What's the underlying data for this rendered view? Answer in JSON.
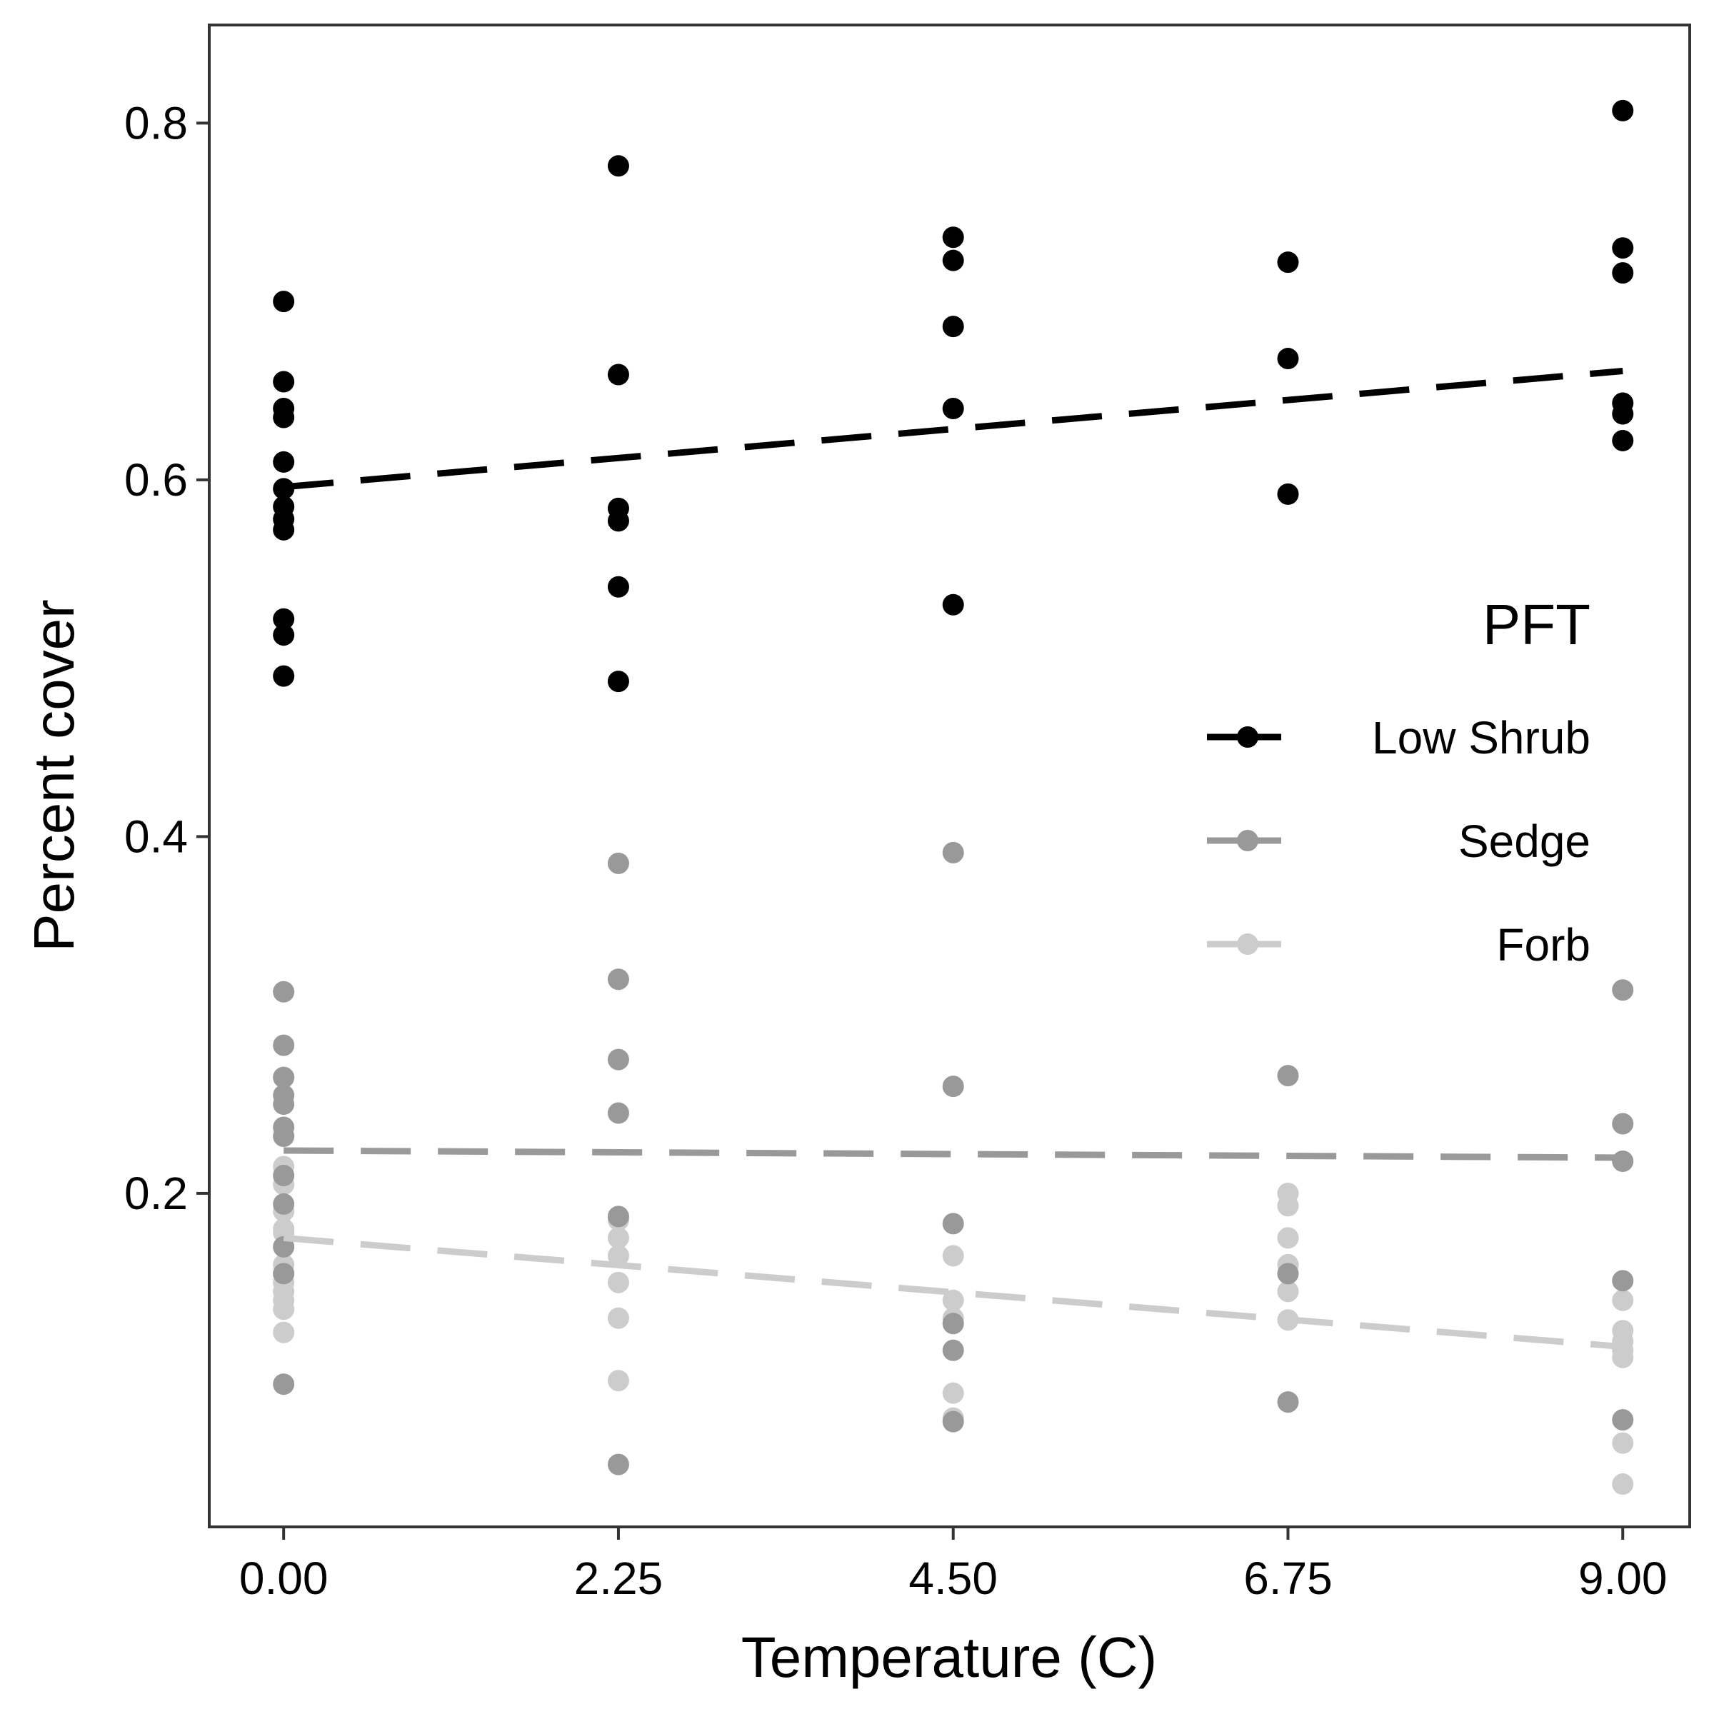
{
  "chart_data": {
    "type": "scatter",
    "title": "",
    "xlabel": "Temperature (C)",
    "ylabel": "Percent cover",
    "xlim": [
      -0.5,
      9.45
    ],
    "ylim": [
      0.013,
      0.855
    ],
    "x_ticks": [
      0,
      2.25,
      4.5,
      6.75,
      9
    ],
    "x_tick_labels": [
      "0.00",
      "2.25",
      "4.50",
      "6.75",
      "9.00"
    ],
    "y_ticks": [
      0.2,
      0.4,
      0.6,
      0.8
    ],
    "y_tick_labels": [
      "0.2",
      "0.4",
      "0.6",
      "0.8"
    ],
    "grid": false,
    "legend": {
      "title": "PFT",
      "position": "right-inside",
      "entries": [
        "Low Shrub",
        "Sedge",
        "Forb"
      ]
    },
    "series": [
      {
        "name": "Low Shrub",
        "color": "#000000",
        "points": [
          [
            0,
            0.7
          ],
          [
            0,
            0.655
          ],
          [
            0,
            0.64
          ],
          [
            0,
            0.635
          ],
          [
            0,
            0.61
          ],
          [
            0,
            0.595
          ],
          [
            0,
            0.585
          ],
          [
            0,
            0.578
          ],
          [
            0,
            0.572
          ],
          [
            0,
            0.522
          ],
          [
            0,
            0.513
          ],
          [
            0,
            0.49
          ],
          [
            2.25,
            0.776
          ],
          [
            2.25,
            0.659
          ],
          [
            2.25,
            0.584
          ],
          [
            2.25,
            0.577
          ],
          [
            2.25,
            0.54
          ],
          [
            2.25,
            0.487
          ],
          [
            4.5,
            0.736
          ],
          [
            4.5,
            0.723
          ],
          [
            4.5,
            0.686
          ],
          [
            4.5,
            0.64
          ],
          [
            4.5,
            0.53
          ],
          [
            6.75,
            0.722
          ],
          [
            6.75,
            0.668
          ],
          [
            6.75,
            0.592
          ],
          [
            9,
            0.807
          ],
          [
            9,
            0.73
          ],
          [
            9,
            0.716
          ],
          [
            9,
            0.643
          ],
          [
            9,
            0.637
          ],
          [
            9,
            0.622
          ]
        ],
        "trend": [
          [
            0,
            0.596
          ],
          [
            9,
            0.661
          ]
        ]
      },
      {
        "name": "Sedge",
        "color": "#999999",
        "points": [
          [
            0,
            0.313
          ],
          [
            0,
            0.283
          ],
          [
            0,
            0.265
          ],
          [
            0,
            0.255
          ],
          [
            0,
            0.25
          ],
          [
            0,
            0.237
          ],
          [
            0,
            0.232
          ],
          [
            0,
            0.21
          ],
          [
            0,
            0.194
          ],
          [
            0,
            0.17
          ],
          [
            0,
            0.155
          ],
          [
            0,
            0.093
          ],
          [
            2.25,
            0.385
          ],
          [
            2.25,
            0.32
          ],
          [
            2.25,
            0.275
          ],
          [
            2.25,
            0.245
          ],
          [
            2.25,
            0.187
          ],
          [
            2.25,
            0.048
          ],
          [
            4.5,
            0.391
          ],
          [
            4.5,
            0.26
          ],
          [
            4.5,
            0.183
          ],
          [
            4.5,
            0.127
          ],
          [
            4.5,
            0.112
          ],
          [
            4.5,
            0.072
          ],
          [
            6.75,
            0.266
          ],
          [
            6.75,
            0.155
          ],
          [
            6.75,
            0.083
          ],
          [
            9,
            0.314
          ],
          [
            9,
            0.239
          ],
          [
            9,
            0.218
          ],
          [
            9,
            0.151
          ],
          [
            9,
            0.073
          ]
        ],
        "trend": [
          [
            0,
            0.224
          ],
          [
            9,
            0.22
          ]
        ]
      },
      {
        "name": "Forb",
        "color": "#cccccc",
        "points": [
          [
            0,
            0.215
          ],
          [
            0,
            0.205
          ],
          [
            0,
            0.19
          ],
          [
            0,
            0.18
          ],
          [
            0,
            0.178
          ],
          [
            0,
            0.16
          ],
          [
            0,
            0.155
          ],
          [
            0,
            0.15
          ],
          [
            0,
            0.145
          ],
          [
            0,
            0.14
          ],
          [
            0,
            0.135
          ],
          [
            0,
            0.122
          ],
          [
            2.25,
            0.185
          ],
          [
            2.25,
            0.175
          ],
          [
            2.25,
            0.165
          ],
          [
            2.25,
            0.15
          ],
          [
            2.25,
            0.13
          ],
          [
            2.25,
            0.095
          ],
          [
            4.5,
            0.165
          ],
          [
            4.5,
            0.14
          ],
          [
            4.5,
            0.13
          ],
          [
            4.5,
            0.088
          ],
          [
            4.5,
            0.074
          ],
          [
            6.75,
            0.2
          ],
          [
            6.75,
            0.193
          ],
          [
            6.75,
            0.175
          ],
          [
            6.75,
            0.16
          ],
          [
            6.75,
            0.145
          ],
          [
            6.75,
            0.129
          ],
          [
            9,
            0.14
          ],
          [
            9,
            0.123
          ],
          [
            9,
            0.117
          ],
          [
            9,
            0.112
          ],
          [
            9,
            0.108
          ],
          [
            9,
            0.06
          ],
          [
            9,
            0.037
          ]
        ],
        "trend": [
          [
            0,
            0.175
          ],
          [
            9,
            0.114
          ]
        ]
      }
    ]
  }
}
